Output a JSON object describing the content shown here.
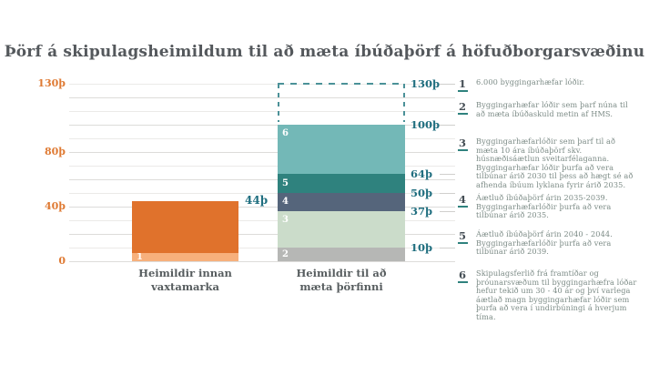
{
  "header": {
    "title": "Þörf á skipulagsheimildum til að mæta íbúðaþörf á höfuðborgarsvæðinu"
  },
  "colors": {
    "orange_dark": "#e0722c",
    "orange_light": "#f7b07c",
    "teal_medium": "#73b8b7",
    "teal_dark": "#2f827e",
    "slate": "#55657b",
    "mint": "#cbdcca",
    "gray": "#b6b7b5",
    "axis_left_label": "#df7a33",
    "axis_right_label": "#1f6e7f",
    "dashed_outline": "#4b9198",
    "grid_major": "#dddcda",
    "grid_minor": "#ebeae8"
  },
  "chart_data": {
    "type": "bar",
    "stacked": true,
    "unit": "þ (þúsund lóðir)",
    "ylim": [
      0,
      130
    ],
    "grid_step": 10,
    "grid_major_step": 20,
    "yticks_left": [
      {
        "value": 0,
        "label": "0"
      },
      {
        "value": 40,
        "label": "40þ"
      },
      {
        "value": 80,
        "label": "80þ"
      },
      {
        "value": 130,
        "label": "130þ"
      }
    ],
    "yticks_right": [
      {
        "value": 130,
        "label": "130þ"
      },
      {
        "value": 100,
        "label": "100þ"
      },
      {
        "value": 64,
        "label": "64þ"
      },
      {
        "value": 50,
        "label": "50þ"
      },
      {
        "value": 37,
        "label": "37þ"
      },
      {
        "value": 10,
        "label": "10þ"
      }
    ],
    "bars": [
      {
        "category_lines": [
          "Heimildir innan",
          "vaxtamarka"
        ],
        "total_label": {
          "value": 44,
          "label": "44þ"
        },
        "segments": [
          {
            "label": "1",
            "from": 0,
            "to": 6,
            "color": "#f7b07c"
          },
          {
            "label": "",
            "from": 6,
            "to": 44,
            "color": "#e0722c"
          }
        ]
      },
      {
        "category_lines": [
          "Heimildir til að",
          "mæta þörfinni"
        ],
        "segments": [
          {
            "label": "2",
            "from": 0,
            "to": 10,
            "color": "#b6b7b5"
          },
          {
            "label": "3",
            "from": 10,
            "to": 37,
            "color": "#cbdcca"
          },
          {
            "label": "4",
            "from": 37,
            "to": 50,
            "color": "#55657b"
          },
          {
            "label": "5",
            "from": 50,
            "to": 64,
            "color": "#2f827e"
          },
          {
            "label": "6",
            "from": 64,
            "to": 100,
            "color": "#73b8b7"
          }
        ],
        "dashed_extension": {
          "from": 100,
          "to": 130
        }
      }
    ]
  },
  "sidebar": {
    "notes": [
      {
        "number": "1",
        "text": "6.000 byggingarhæfar lóðir."
      },
      {
        "number": "2",
        "text": "Byggingarhæfar lóðir sem þarf núna til að mæta íbúðaskuld metin af HMS."
      },
      {
        "number": "3",
        "text": "Byggingarhæfarlóðir sem þarf til að mæta 10 ára íbúðaþörf skv. húsnæðisáætlun sveitarfélaganna. Byggingarhæfar lóðir þurfa að vera tilbúnar árið 2030 til þess að hægt sé að afhenda íbúum lyklana fyrir árið 2035."
      },
      {
        "number": "4",
        "text": "Áætluð íbúðaþörf árin 2035-2039. Byggingarhæfarlóðir þurfa að vera tilbúnar árið 2035."
      },
      {
        "number": "5",
        "text": "Áætluð íbúðaþörf árin 2040 - 2044. Byggingarhæfarlóðir þurfa að vera tilbúnar árið 2039."
      },
      {
        "number": "6",
        "text": "Skipulagsferlið frá framtíðar og þróunarsvæðum til byggingarhæfra lóðar hefur tekið um 30 - 40 ár og því varlega áætlað magn byggingarhæfar lóðir sem þurfa að vera í undirbúningi á hverjum tíma."
      }
    ]
  }
}
